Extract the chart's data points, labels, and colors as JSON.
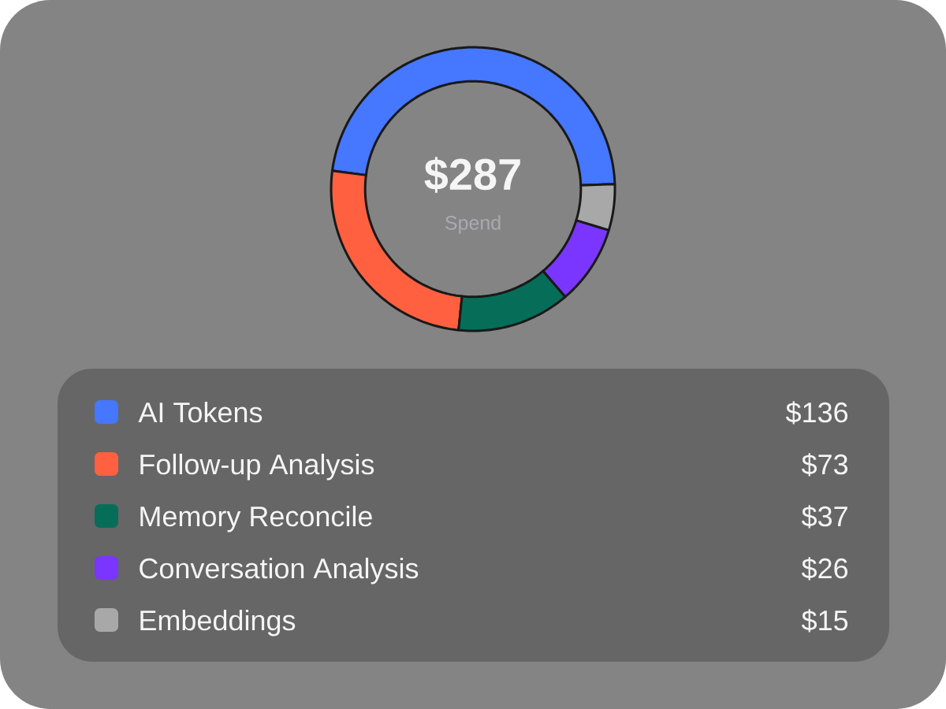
{
  "chart_data": {
    "type": "donut",
    "categories": [
      "AI Tokens",
      "Follow-up Analysis",
      "Memory Reconcile",
      "Conversation Analysis",
      "Embeddings"
    ],
    "values": [
      136,
      73,
      37,
      26,
      15
    ],
    "value_labels": [
      "$136",
      "$73",
      "$37",
      "$26",
      "$15"
    ],
    "colors": [
      "#4577ff",
      "#ff6040",
      "#066e58",
      "#7a36ff",
      "#a8a8a8"
    ],
    "annotations": [
      "$287",
      "Spend"
    ],
    "legend": "bottom"
  }
}
